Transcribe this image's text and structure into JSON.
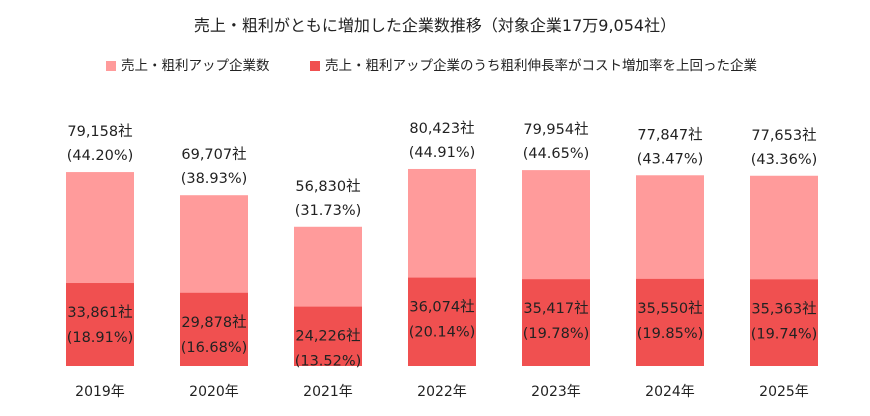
{
  "chart_data": {
    "type": "bar",
    "title": "売上・粗利がともに増加した企業数推移（対象企業17万9,054社）",
    "xlabel": "",
    "ylabel": "",
    "ylim": [
      0,
      100000
    ],
    "grid": false,
    "legend_position": "top",
    "stacked": false,
    "overlapped": true,
    "categories": [
      "2019年",
      "2020年",
      "2021年",
      "2022年",
      "2023年",
      "2024年",
      "2025年"
    ],
    "series": [
      {
        "name": "売上・粗利アップ企業数",
        "color": "#ff9b9b",
        "values": [
          79158,
          69707,
          56830,
          80423,
          79954,
          77847,
          77653
        ],
        "labels": [
          "79,158社",
          "69,707社",
          "56,830社",
          "80,423社",
          "79,954社",
          "77,847社",
          "77,653社"
        ],
        "pct_labels": [
          "(44.20%)",
          "(38.93%)",
          "(31.73%)",
          "(44.91%)",
          "(44.65%)",
          "(43.47%)",
          "(43.36%)"
        ]
      },
      {
        "name": "売上・粗利アップ企業のうち粗利伸長率がコスト増加率を上回った企業",
        "color": "#f05050",
        "values": [
          33861,
          29878,
          24226,
          36074,
          35417,
          35550,
          35363
        ],
        "labels": [
          "33,861社",
          "29,878社",
          "24,226社",
          "36,074社",
          "35,417社",
          "35,550社",
          "35,363社"
        ],
        "pct_labels": [
          "(18.91%)",
          "(16.68%)",
          "(13.52%)",
          "(20.14%)",
          "(19.78%)",
          "(19.85%)",
          "(19.74%)"
        ]
      }
    ]
  }
}
